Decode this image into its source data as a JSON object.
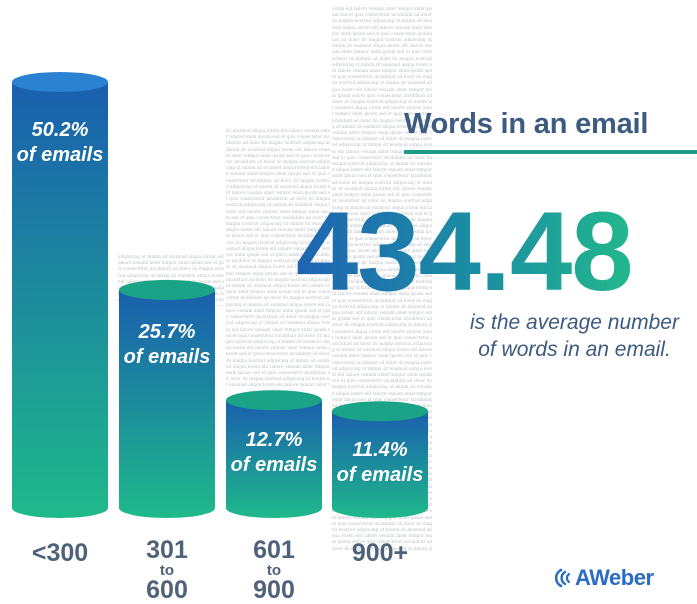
{
  "chart_data": {
    "type": "bar",
    "categories": [
      "<300",
      "301 to 600",
      "601 to 900",
      "900+"
    ],
    "values": [
      50.2,
      25.7,
      12.7,
      11.4
    ],
    "value_labels": [
      {
        "pct": "50.2%",
        "unit": "of emails"
      },
      {
        "pct": "25.7%",
        "unit": "of emails"
      },
      {
        "pct": "12.7%",
        "unit": "of emails"
      },
      {
        "pct": "11.4%",
        "unit": "of emails"
      }
    ],
    "category_labels": [
      {
        "main": "<300"
      },
      {
        "main": "301",
        "mid": "to",
        "end": "600"
      },
      {
        "main": "601",
        "mid": "to",
        "end": "900"
      },
      {
        "main": "900+"
      }
    ],
    "title": "Words in an email",
    "xlabel": "",
    "ylabel": "",
    "ylim": [
      0,
      50.2
    ],
    "legend": "none",
    "grid": false,
    "colors": {
      "top": "#1a5fae",
      "bottom": "#1fb98a",
      "cap": "#2a82d1"
    }
  },
  "headline": {
    "average": "434.48",
    "caption_line1": "is the average number",
    "caption_line2": "of words in an email."
  },
  "brand": {
    "logo_text": "AWeber",
    "accent": "#1f9a88",
    "title_color": "#3d5a80",
    "logo_color": "#2b6cc4"
  }
}
